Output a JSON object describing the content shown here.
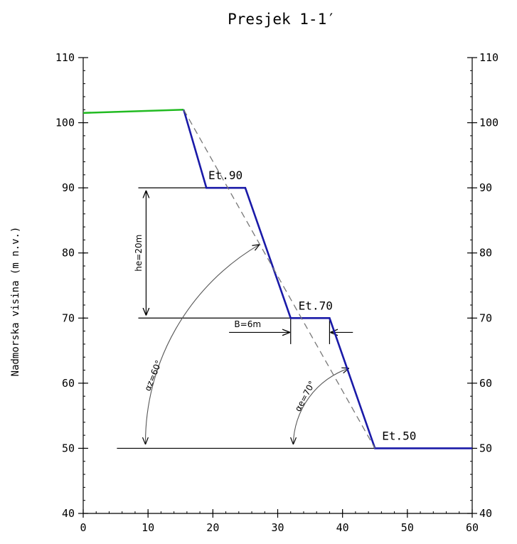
{
  "chart_data": {
    "type": "line",
    "title": "Presjek 1-1′",
    "xlabel": "",
    "ylabel": "Nadmorska visina (m n.v.)",
    "xlim": [
      0,
      60
    ],
    "ylim": [
      40,
      110
    ],
    "x_ticks": [
      0,
      10,
      20,
      30,
      40,
      50,
      60
    ],
    "y_ticks": [
      40,
      50,
      60,
      70,
      80,
      90,
      100,
      110
    ],
    "grid": false,
    "series": [
      {
        "color": "#22bb22",
        "style": "solid",
        "x": [
          0,
          15.5
        ],
        "y": [
          101.5,
          102
        ]
      },
      {
        "color": "#1a1aa8",
        "style": "solid",
        "x": [
          15.5,
          19,
          25,
          32,
          38,
          45,
          60
        ],
        "y": [
          102,
          90,
          90,
          70,
          70,
          50,
          50
        ]
      },
      {
        "color": "#777777",
        "style": "dashed",
        "x": [
          15.5,
          45
        ],
        "y": [
          102,
          50
        ]
      }
    ],
    "annotations": {
      "et90": "Et.90",
      "et70": "Et.70",
      "et50": "Et.50",
      "he": "he=20m",
      "b": "B=6m",
      "az": "αz=60°",
      "ae": "αe=70°"
    }
  }
}
